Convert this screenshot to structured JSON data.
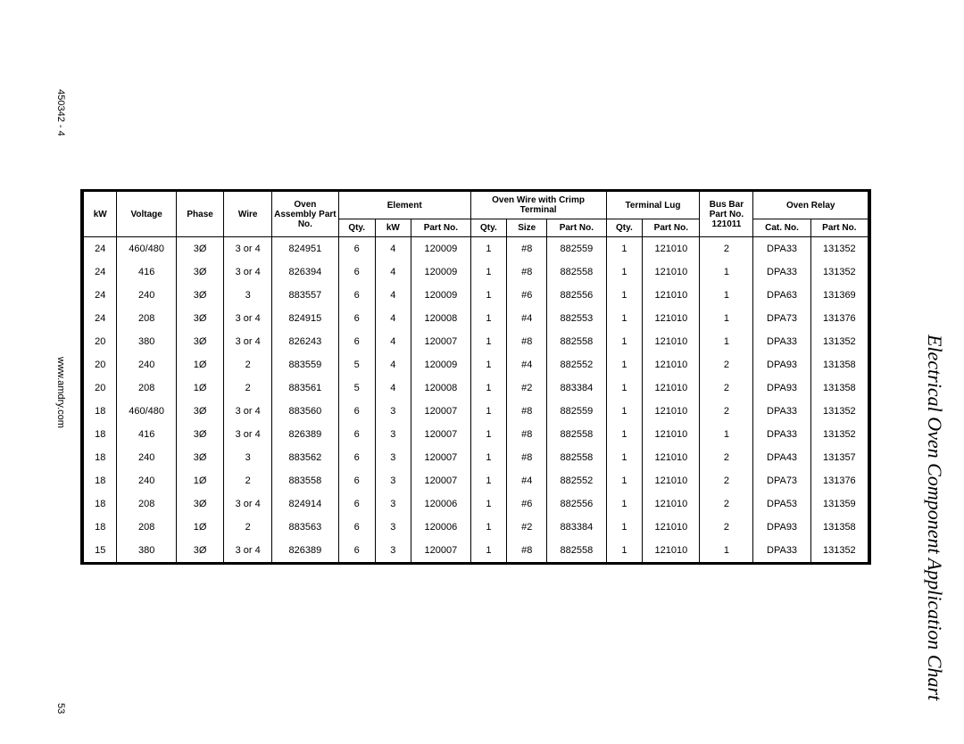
{
  "docNumber": "450342 - 4",
  "website": "www.amdry.com",
  "pageNumber": "53",
  "sectionTitle": "Electrical Oven Component Application Chart",
  "headers": {
    "kw": "kW",
    "voltage": "Voltage",
    "phase": "Phase",
    "wire": "Wire",
    "ovenAssembly": "Oven Assembly Part No.",
    "element": "Element",
    "elementQty": "Qty.",
    "elementKw": "kW",
    "elementPn": "Part No.",
    "ovenWire": "Oven Wire with Crimp Terminal",
    "ovenWireQty": "Qty.",
    "ovenWireSize": "Size",
    "ovenWirePn": "Part No.",
    "terminalLug": "Terminal Lug",
    "terminalLugQty": "Qty.",
    "terminalLugPn": "Part No.",
    "busBar": "Bus Bar Part No. 121011",
    "ovenRelay": "Oven Relay",
    "ovenRelayCat": "Cat. No.",
    "ovenRelayPn": "Part No."
  },
  "rows": [
    {
      "kw": "24",
      "voltage": "460/480",
      "phase": "3Ø",
      "wire": "3 or 4",
      "ovenAssy": "824951",
      "elQty": "6",
      "elKw": "4",
      "elPn": "120009",
      "owQty": "1",
      "owSize": "#8",
      "owPn": "882559",
      "tlQty": "1",
      "tlPn": "121010",
      "bb": "2",
      "orCat": "DPA33",
      "orPn": "131352"
    },
    {
      "kw": "24",
      "voltage": "416",
      "phase": "3Ø",
      "wire": "3 or 4",
      "ovenAssy": "826394",
      "elQty": "6",
      "elKw": "4",
      "elPn": "120009",
      "owQty": "1",
      "owSize": "#8",
      "owPn": "882558",
      "tlQty": "1",
      "tlPn": "121010",
      "bb": "1",
      "orCat": "DPA33",
      "orPn": "131352"
    },
    {
      "kw": "24",
      "voltage": "240",
      "phase": "3Ø",
      "wire": "3",
      "ovenAssy": "883557",
      "elQty": "6",
      "elKw": "4",
      "elPn": "120009",
      "owQty": "1",
      "owSize": "#6",
      "owPn": "882556",
      "tlQty": "1",
      "tlPn": "121010",
      "bb": "1",
      "orCat": "DPA63",
      "orPn": "131369"
    },
    {
      "kw": "24",
      "voltage": "208",
      "phase": "3Ø",
      "wire": "3 or 4",
      "ovenAssy": "824915",
      "elQty": "6",
      "elKw": "4",
      "elPn": "120008",
      "owQty": "1",
      "owSize": "#4",
      "owPn": "882553",
      "tlQty": "1",
      "tlPn": "121010",
      "bb": "1",
      "orCat": "DPA73",
      "orPn": "131376"
    },
    {
      "kw": "20",
      "voltage": "380",
      "phase": "3Ø",
      "wire": "3 or 4",
      "ovenAssy": "826243",
      "elQty": "6",
      "elKw": "4",
      "elPn": "120007",
      "owQty": "1",
      "owSize": "#8",
      "owPn": "882558",
      "tlQty": "1",
      "tlPn": "121010",
      "bb": "1",
      "orCat": "DPA33",
      "orPn": "131352"
    },
    {
      "kw": "20",
      "voltage": "240",
      "phase": "1Ø",
      "wire": "2",
      "ovenAssy": "883559",
      "elQty": "5",
      "elKw": "4",
      "elPn": "120009",
      "owQty": "1",
      "owSize": "#4",
      "owPn": "882552",
      "tlQty": "1",
      "tlPn": "121010",
      "bb": "2",
      "orCat": "DPA93",
      "orPn": "131358"
    },
    {
      "kw": "20",
      "voltage": "208",
      "phase": "1Ø",
      "wire": "2",
      "ovenAssy": "883561",
      "elQty": "5",
      "elKw": "4",
      "elPn": "120008",
      "owQty": "1",
      "owSize": "#2",
      "owPn": "883384",
      "tlQty": "1",
      "tlPn": "121010",
      "bb": "2",
      "orCat": "DPA93",
      "orPn": "131358"
    },
    {
      "kw": "18",
      "voltage": "460/480",
      "phase": "3Ø",
      "wire": "3 or 4",
      "ovenAssy": "883560",
      "elQty": "6",
      "elKw": "3",
      "elPn": "120007",
      "owQty": "1",
      "owSize": "#8",
      "owPn": "882559",
      "tlQty": "1",
      "tlPn": "121010",
      "bb": "2",
      "orCat": "DPA33",
      "orPn": "131352"
    },
    {
      "kw": "18",
      "voltage": "416",
      "phase": "3Ø",
      "wire": "3 or 4",
      "ovenAssy": "826389",
      "elQty": "6",
      "elKw": "3",
      "elPn": "120007",
      "owQty": "1",
      "owSize": "#8",
      "owPn": "882558",
      "tlQty": "1",
      "tlPn": "121010",
      "bb": "1",
      "orCat": "DPA33",
      "orPn": "131352"
    },
    {
      "kw": "18",
      "voltage": "240",
      "phase": "3Ø",
      "wire": "3",
      "ovenAssy": "883562",
      "elQty": "6",
      "elKw": "3",
      "elPn": "120007",
      "owQty": "1",
      "owSize": "#8",
      "owPn": "882558",
      "tlQty": "1",
      "tlPn": "121010",
      "bb": "2",
      "orCat": "DPA43",
      "orPn": "131357"
    },
    {
      "kw": "18",
      "voltage": "240",
      "phase": "1Ø",
      "wire": "2",
      "ovenAssy": "883558",
      "elQty": "6",
      "elKw": "3",
      "elPn": "120007",
      "owQty": "1",
      "owSize": "#4",
      "owPn": "882552",
      "tlQty": "1",
      "tlPn": "121010",
      "bb": "2",
      "orCat": "DPA73",
      "orPn": "131376"
    },
    {
      "kw": "18",
      "voltage": "208",
      "phase": "3Ø",
      "wire": "3 or 4",
      "ovenAssy": "824914",
      "elQty": "6",
      "elKw": "3",
      "elPn": "120006",
      "owQty": "1",
      "owSize": "#6",
      "owPn": "882556",
      "tlQty": "1",
      "tlPn": "121010",
      "bb": "2",
      "orCat": "DPA53",
      "orPn": "131359"
    },
    {
      "kw": "18",
      "voltage": "208",
      "phase": "1Ø",
      "wire": "2",
      "ovenAssy": "883563",
      "elQty": "6",
      "elKw": "3",
      "elPn": "120006",
      "owQty": "1",
      "owSize": "#2",
      "owPn": "883384",
      "tlQty": "1",
      "tlPn": "121010",
      "bb": "2",
      "orCat": "DPA93",
      "orPn": "131358"
    },
    {
      "kw": "15",
      "voltage": "380",
      "phase": "3Ø",
      "wire": "3 or 4",
      "ovenAssy": "826389",
      "elQty": "6",
      "elKw": "3",
      "elPn": "120007",
      "owQty": "1",
      "owSize": "#8",
      "owPn": "882558",
      "tlQty": "1",
      "tlPn": "121010",
      "bb": "1",
      "orCat": "DPA33",
      "orPn": "131352"
    }
  ]
}
